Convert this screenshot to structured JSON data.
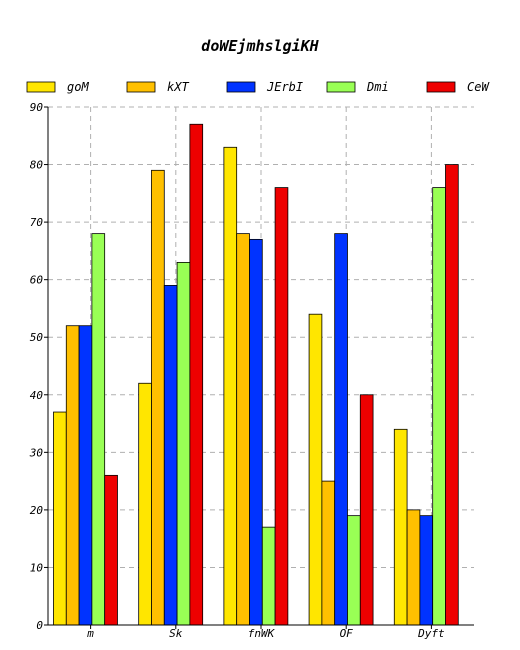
{
  "chart_data": {
    "type": "bar",
    "title": "doWEjmhslgiKH",
    "xlabel": "",
    "ylabel": "",
    "categories": [
      "m",
      "Sk",
      "fnWK",
      "OF",
      "Dyft"
    ],
    "ylim": [
      0,
      90
    ],
    "yticks": [
      0,
      10,
      20,
      30,
      40,
      50,
      60,
      70,
      80,
      90
    ],
    "grid": true,
    "legend_position": "top",
    "series": [
      {
        "name": "goM",
        "color": "#ffe600",
        "values": [
          37,
          42,
          83,
          54,
          34
        ]
      },
      {
        "name": "kXT",
        "color": "#ffc000",
        "values": [
          52,
          79,
          68,
          25,
          20
        ]
      },
      {
        "name": "JErbI",
        "color": "#0033ff",
        "values": [
          52,
          59,
          67,
          68,
          19
        ]
      },
      {
        "name": "Dmi",
        "color": "#99ff55",
        "values": [
          68,
          63,
          17,
          19,
          76
        ]
      },
      {
        "name": "CeW",
        "color": "#ee0000",
        "values": [
          26,
          87,
          76,
          40,
          80
        ]
      }
    ]
  }
}
